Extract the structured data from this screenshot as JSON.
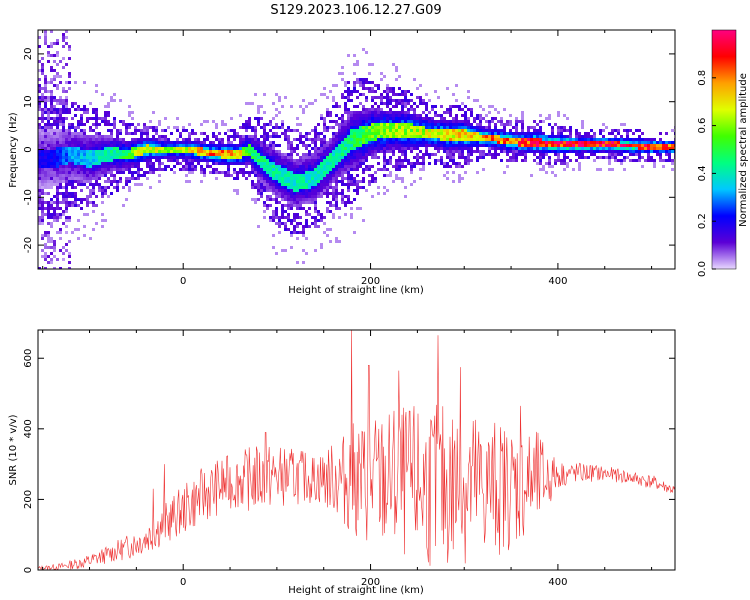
{
  "title": "S129.2023.106.12.27.G09",
  "chart_data": [
    {
      "type": "heatmap",
      "xlabel": "Height of straight line (km)",
      "ylabel": "Frequency (Hz)",
      "xlim": [
        -155,
        525
      ],
      "ylim": [
        -25,
        25
      ],
      "x_ticks": [
        0,
        200,
        400
      ],
      "y_ticks": [
        -20,
        -10,
        0,
        10,
        20
      ],
      "colorbar": {
        "label": "Normalized spectral amplitude",
        "range": [
          0,
          1
        ],
        "ticks": [
          "0.0",
          "0.2",
          "0.4",
          "0.6",
          "0.8"
        ],
        "colormap": [
          "#e8d8ff",
          "#5b00d6",
          "#0000ff",
          "#00c8ff",
          "#00ff80",
          "#40ff00",
          "#e0ff00",
          "#ffa000",
          "#ff0000",
          "#ff0080"
        ]
      },
      "ridge_frequency": {
        "x": [
          -140,
          -120,
          -100,
          -80,
          -60,
          -40,
          -20,
          0,
          20,
          40,
          60,
          70,
          80,
          100,
          120,
          140,
          160,
          180,
          200,
          220,
          240,
          260,
          280,
          300,
          320,
          340,
          360,
          380,
          400,
          420,
          440,
          460,
          480,
          500,
          525
        ],
        "y": [
          -2,
          -1,
          -2,
          -1,
          -1,
          0,
          0,
          0,
          -0.5,
          -1,
          -1,
          0,
          -2,
          -5,
          -7,
          -6,
          -2,
          2,
          3.5,
          4,
          4,
          3.5,
          3,
          3,
          2.5,
          2,
          1.5,
          1.5,
          1,
          1,
          1,
          1,
          0.8,
          0.6,
          0.5
        ],
        "amplitude": [
          0.2,
          0.3,
          0.35,
          0.4,
          0.5,
          0.7,
          0.6,
          0.65,
          0.75,
          0.8,
          0.7,
          0.5,
          0.45,
          0.4,
          0.4,
          0.4,
          0.4,
          0.45,
          0.55,
          0.6,
          0.6,
          0.65,
          0.7,
          0.7,
          0.75,
          0.8,
          0.85,
          0.9,
          0.9,
          0.92,
          0.93,
          0.93,
          0.9,
          0.85,
          0.8
        ],
        "spread_hz": [
          6,
          5,
          5,
          4,
          3,
          2.5,
          2,
          2,
          2,
          2,
          2.5,
          3,
          4,
          5,
          5,
          5,
          5,
          6,
          5,
          4,
          4,
          3,
          3,
          3,
          2,
          2,
          2,
          2,
          2,
          1.5,
          1.5,
          1.5,
          1.5,
          1.5,
          1.5
        ]
      }
    },
    {
      "type": "line",
      "xlabel": "Height of straight line (km)",
      "ylabel": "SNR (10 * v/v)",
      "xlim": [
        -155,
        525
      ],
      "ylim": [
        0,
        680
      ],
      "x_ticks": [
        0,
        200,
        400
      ],
      "y_ticks": [
        0,
        200,
        400,
        600
      ],
      "color": "#ee3333",
      "envelope": {
        "x": [
          -155,
          -130,
          -100,
          -80,
          -60,
          -40,
          -20,
          0,
          20,
          40,
          60,
          80,
          100,
          120,
          140,
          160,
          180,
          200,
          220,
          240,
          260,
          280,
          300,
          320,
          340,
          360,
          380,
          400,
          420,
          440,
          460,
          480,
          500,
          525
        ],
        "mean": [
          5,
          10,
          25,
          45,
          65,
          90,
          130,
          170,
          210,
          240,
          255,
          260,
          265,
          265,
          260,
          260,
          255,
          250,
          250,
          245,
          240,
          235,
          235,
          235,
          235,
          240,
          250,
          270,
          275,
          275,
          270,
          260,
          250,
          225
        ],
        "spread": [
          5,
          10,
          20,
          25,
          35,
          45,
          60,
          70,
          80,
          80,
          80,
          100,
          90,
          80,
          70,
          100,
          160,
          190,
          210,
          220,
          230,
          240,
          240,
          210,
          190,
          170,
          140,
          40,
          30,
          25,
          20,
          20,
          20,
          15
        ],
        "peaks": [
          [
            -32,
            230
          ],
          [
            -20,
            300
          ],
          [
            88,
            390
          ],
          [
            180,
            680
          ],
          [
            198,
            580
          ],
          [
            230,
            565
          ],
          [
            272,
            665
          ],
          [
            296,
            575
          ],
          [
            360,
            465
          ]
        ]
      }
    }
  ]
}
